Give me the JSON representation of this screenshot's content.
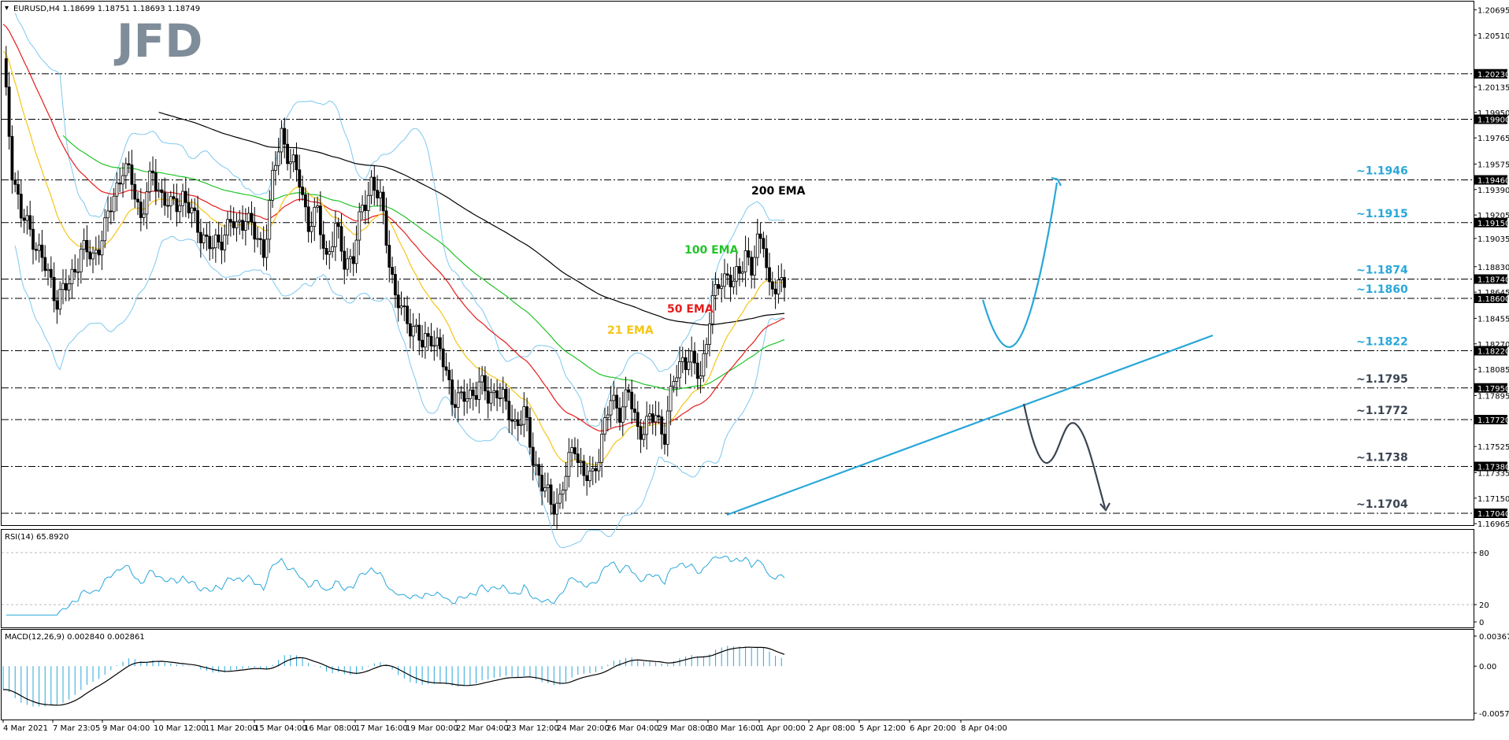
{
  "header": {
    "symbol_line": "EURUSD,H4  1.18699 1.18751 1.18693 1.18749",
    "logo": "JFD"
  },
  "chart_data": {
    "type": "candlestick",
    "symbol": "EURUSD",
    "timeframe": "H4",
    "ohlc_display": {
      "open": 1.18699,
      "high": 1.18751,
      "low": 1.18693,
      "close": 1.18749
    },
    "ylim": [
      1.1692,
      1.2072
    ],
    "price_ticks": [
      "1.20695",
      "1.20510",
      "1.20230",
      "1.20135",
      "1.19950",
      "1.19900",
      "1.19765",
      "1.19575",
      "1.19460",
      "1.19390",
      "1.19205",
      "1.19150",
      "1.19035",
      "1.18830",
      "1.18740",
      "1.18645",
      "1.18600",
      "1.18455",
      "1.18270",
      "1.18220",
      "1.18085",
      "1.17950",
      "1.17895",
      "1.17720",
      "1.17525",
      "1.17380",
      "1.17335",
      "1.17150",
      "1.17040",
      "1.16965"
    ],
    "highlighted_ticks": [
      "1.20230",
      "1.19900",
      "1.19460",
      "1.19150",
      "1.18740",
      "1.18600",
      "1.18220",
      "1.17950",
      "1.17720",
      "1.17380",
      "1.17040"
    ],
    "x_labels": [
      "4 Mar 2021",
      "7 Mar 23:05",
      "9 Mar 04:00",
      "10 Mar 12:00",
      "11 Mar 20:00",
      "15 Mar 04:00",
      "16 Mar 08:00",
      "17 Mar 16:00",
      "19 Mar 00:00",
      "22 Mar 04:00",
      "23 Mar 12:00",
      "24 Mar 20:00",
      "26 Mar 04:00",
      "29 Mar 08:00",
      "30 Mar 16:00",
      "1 Apr 00:00",
      "2 Apr 08:00",
      "5 Apr 12:00",
      "6 Apr 20:00",
      "8 Apr 04:00"
    ],
    "levels": [
      {
        "value": 1.2023,
        "label": ""
      },
      {
        "value": 1.199,
        "label": ""
      },
      {
        "value": 1.1946,
        "label": "~1.1946",
        "color": "#29a7d9"
      },
      {
        "value": 1.1915,
        "label": "~1.1915",
        "color": "#29a7d9"
      },
      {
        "value": 1.1874,
        "label": "~1.1874",
        "color": "#29a7d9"
      },
      {
        "value": 1.186,
        "label": "~1.1860",
        "color": "#29a7d9"
      },
      {
        "value": 1.1822,
        "label": "~1.1822",
        "color": "#29a7d9"
      },
      {
        "value": 1.1795,
        "label": "~1.1795",
        "color": "#3a4452"
      },
      {
        "value": 1.1772,
        "label": "~1.1772",
        "color": "#3a4452"
      },
      {
        "value": 1.1738,
        "label": "~1.1738",
        "color": "#3a4452"
      },
      {
        "value": 1.1704,
        "label": "~1.1704",
        "color": "#3a4452"
      }
    ],
    "emas": [
      {
        "name": "200 EMA",
        "color": "#000000"
      },
      {
        "name": "100 EMA",
        "color": "#22c42a"
      },
      {
        "name": "50 EMA",
        "color": "#e51d1d"
      },
      {
        "name": "21 EMA",
        "color": "#f5c518"
      }
    ],
    "bollinger_color": "#7fc8ef",
    "trendline_color": "#29a7d9",
    "bull_arrow_color": "#29a7d9",
    "bear_arrow_color": "#3a4452",
    "candle_color": "#000000"
  },
  "rsi": {
    "label": "RSI(14) 65.8920",
    "ticks": [
      "80",
      "20",
      "0"
    ],
    "levels": [
      80,
      20
    ],
    "color": "#29a7d9"
  },
  "macd": {
    "label": "MACD(12,26,9) 0.002840 0.002861",
    "ticks": [
      "0.003672",
      "0.00",
      "-0.005743"
    ],
    "ylim": [
      -0.005743,
      0.003672
    ],
    "histogram_color": "#29a7d9",
    "signal_color": "#000000"
  }
}
